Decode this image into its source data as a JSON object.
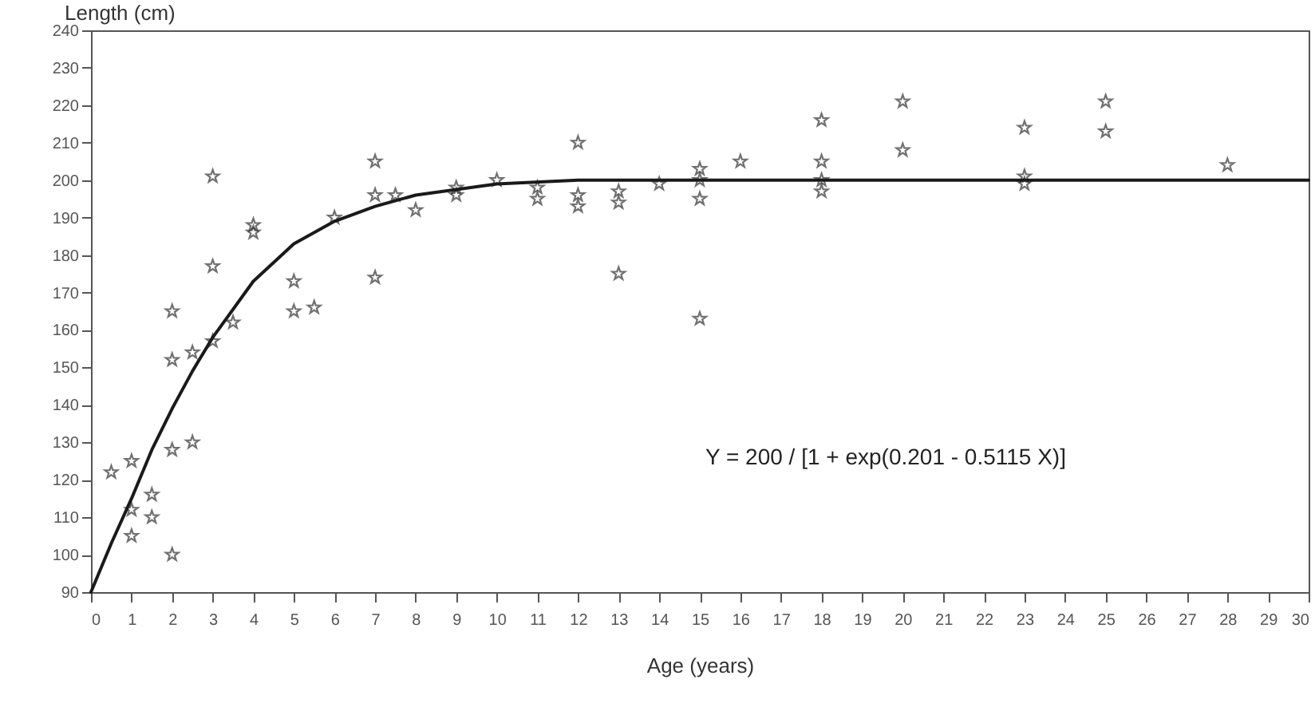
{
  "chart_data": {
    "type": "scatter",
    "ylabel": "Length (cm)",
    "xlabel": "Age (years)",
    "annotations": [
      "Y = 200 / [1 + exp(0.201 - 0.5115 X)]"
    ],
    "xlim": [
      0,
      30
    ],
    "xticks": [
      0,
      1,
      2,
      3,
      4,
      5,
      6,
      7,
      8,
      9,
      10,
      11,
      12,
      13,
      14,
      15,
      16,
      17,
      18,
      19,
      20,
      21,
      22,
      23,
      24,
      25,
      26,
      27,
      28,
      29,
      30
    ],
    "ylim": [
      90,
      240
    ],
    "yticks": [
      90,
      100,
      110,
      120,
      130,
      140,
      150,
      160,
      170,
      180,
      190,
      200,
      210,
      220,
      230,
      240
    ],
    "grid": false,
    "marker": "star",
    "series": [
      {
        "type": "scatter",
        "color": "#333333",
        "x": [
          0.5,
          1,
          1,
          1,
          1.5,
          1.5,
          2,
          2,
          2,
          2,
          2.5,
          2.5,
          3,
          3,
          3,
          3.5,
          4,
          4,
          5,
          5,
          5.5,
          6,
          7,
          7,
          7,
          7.5,
          8,
          9,
          9,
          10,
          11,
          11,
          12,
          12,
          12,
          13,
          13,
          13,
          14,
          15,
          15,
          15,
          15,
          16,
          18,
          18,
          18,
          18,
          20,
          20,
          23,
          23,
          23,
          25,
          25,
          28
        ],
        "values": [
          122,
          125,
          112,
          105,
          116,
          110,
          165,
          152,
          128,
          100,
          154,
          130,
          201,
          177,
          157,
          162,
          188,
          186,
          173,
          165,
          166,
          190,
          205,
          196,
          174,
          196,
          192,
          198,
          196,
          200,
          198,
          195,
          210,
          196,
          193,
          197,
          194,
          175,
          199,
          203,
          200,
          195,
          163,
          205,
          216,
          205,
          200,
          197,
          221,
          208,
          214,
          201,
          199,
          221,
          213,
          204
        ]
      },
      {
        "type": "line",
        "color": "#1a1a1a",
        "marker": "none",
        "line_style": "solid",
        "x": [
          0,
          0.5,
          1,
          1.5,
          2,
          2.5,
          3,
          4,
          5,
          6,
          7,
          8,
          10,
          12,
          15,
          30
        ],
        "values": [
          90,
          103,
          115,
          128,
          139,
          149,
          158,
          173,
          183,
          189,
          193,
          196,
          199,
          200,
          200,
          200
        ]
      }
    ]
  }
}
